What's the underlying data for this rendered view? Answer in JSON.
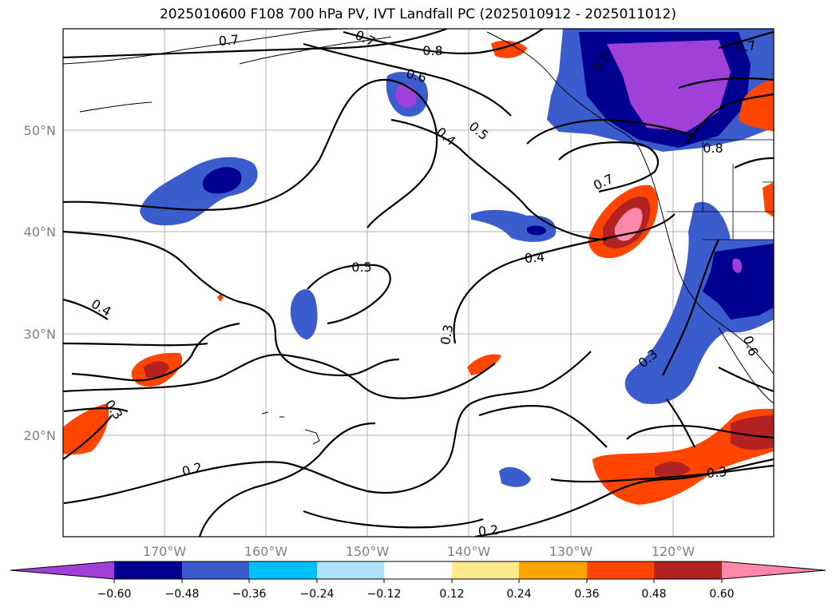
{
  "title": "2025010600 F108 700 hPa PV, IVT Landfall PC (2025010912 - 2025011012)",
  "map": {
    "lon_labels": [
      "170°W",
      "160°W",
      "150°W",
      "140°W",
      "130°W",
      "120°W"
    ],
    "lat_labels": [
      "50°N",
      "40°N",
      "30°N",
      "20°N"
    ],
    "contour_labels": [
      "0.7",
      "0.7",
      "0.8",
      "0.7",
      "0.6",
      "0.5",
      "0.4",
      "0.5",
      "0.8",
      "0.7",
      "0.5",
      "0.4",
      "0.4",
      "0.3",
      "0.3",
      "0.3",
      "0.2",
      "0.3",
      "0.2",
      "0.6"
    ]
  },
  "colorbar": {
    "colors": [
      "#a040d8",
      "#000090",
      "#3a5ccc",
      "#00bfff",
      "#b0e2ff",
      "#ffffff",
      "#ffea8f",
      "#ffa500",
      "#ff4500",
      "#b22222",
      "#ff88aa"
    ],
    "ticks": [
      "−0.60",
      "−0.48",
      "−0.36",
      "−0.24",
      "−0.12",
      "0.12",
      "0.24",
      "0.36",
      "0.48",
      "0.60"
    ]
  }
}
